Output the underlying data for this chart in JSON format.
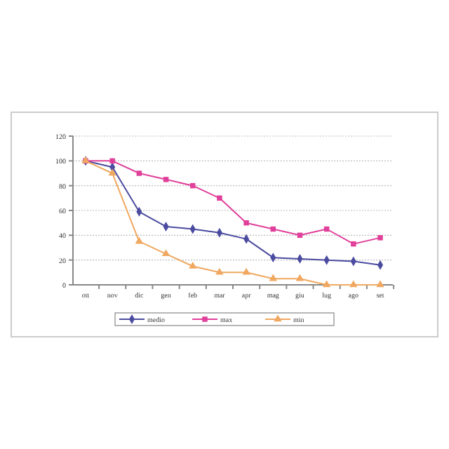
{
  "chart_data": {
    "type": "line",
    "categories": [
      "ott",
      "nov",
      "dic",
      "gen",
      "feb",
      "mar",
      "apr",
      "mag",
      "giu",
      "lug",
      "ago",
      "set"
    ],
    "series": [
      {
        "name": "medio",
        "color": "#4b4ba0",
        "marker": "diamond",
        "values": [
          100,
          95,
          59,
          47,
          45,
          42,
          37,
          22,
          21,
          20,
          19,
          16
        ]
      },
      {
        "name": "max",
        "color": "#e0409a",
        "marker": "square",
        "values": [
          100,
          100,
          90,
          85,
          80,
          70,
          50,
          45,
          40,
          45,
          33,
          38
        ]
      },
      {
        "name": "min",
        "color": "#f0a860",
        "marker": "triangle",
        "values": [
          100,
          90,
          35,
          25,
          15,
          10,
          10,
          5,
          5,
          0,
          0,
          0
        ]
      }
    ],
    "ylim": [
      0,
      120
    ],
    "yticks": [
      0,
      20,
      40,
      60,
      80,
      100,
      120
    ],
    "grid": "y",
    "legend": "bottom"
  }
}
